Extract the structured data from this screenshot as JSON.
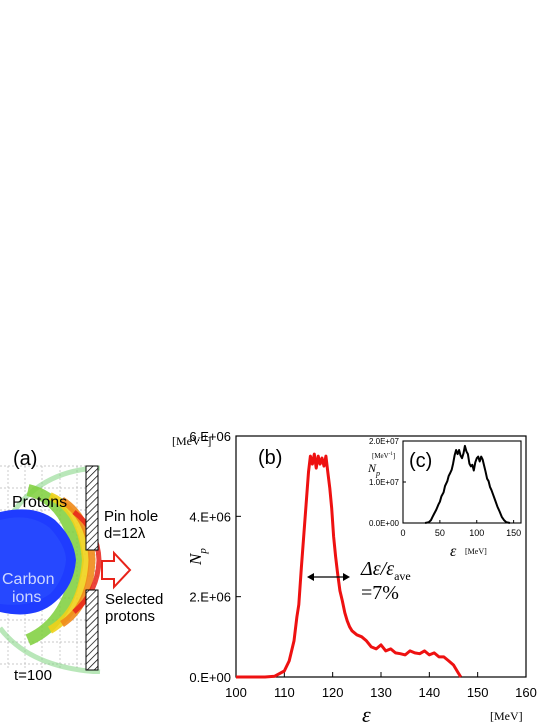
{
  "panel_a": {
    "label": "(a)",
    "protons_label": "Protons",
    "carbon_label_1": "Carbon",
    "carbon_label_2": "ions",
    "pinhole_label_1": "Pin hole",
    "pinhole_label_2": "d=12λ",
    "selected_label_1": "Selected",
    "selected_label_2": "protons",
    "time_label": "t=100",
    "colors": {
      "carbon": "#1f3cff",
      "arrow": "#e8231a"
    }
  },
  "panel_b": {
    "label": "(b)",
    "unit_label": "[MeV",
    "unit_sup": "-1",
    "unit_close": "]",
    "ylabel_main": "N",
    "ylabel_sub": "p",
    "xlabel": "ε",
    "xunit": "[MeV]",
    "annotation_line1": "Δε/ε",
    "annotation_sub": "ave",
    "annotation_line2": "=7%"
  },
  "panel_c": {
    "label": "(c)",
    "unit_label": "[MeV",
    "unit_sup": "-1",
    "unit_close": "]",
    "ylabel_main": "N",
    "ylabel_sub": "p",
    "xlabel": "ε",
    "xunit": "[MeV]"
  },
  "chart_data": [
    {
      "type": "line",
      "panel": "(b)",
      "xlabel": "ε",
      "ylabel": "Np",
      "xlim": [
        100,
        160
      ],
      "ylim": [
        0,
        6000000
      ],
      "x_ticks": [
        100,
        110,
        120,
        130,
        140,
        150,
        160
      ],
      "y_ticks": [
        0,
        2000000,
        4000000,
        6000000
      ],
      "y_tick_labels": [
        "0.E+00",
        "2.E+06",
        "4.E+06",
        "6.E+06"
      ],
      "line_color": "#ee1111",
      "grid": false,
      "series": [
        {
          "x": [
            100,
            106,
            108,
            110,
            111,
            112,
            112.6,
            113,
            113.5,
            114,
            114.5,
            115,
            115.4,
            115.8,
            116.2,
            116.6,
            117,
            117.4,
            117.8,
            118.2,
            118.6,
            119,
            119.4,
            119.8,
            120.2,
            120.6,
            121,
            121.5,
            122,
            122.5,
            123,
            123.5,
            124,
            125,
            126,
            127,
            128,
            129,
            130,
            131,
            132,
            133,
            134,
            135,
            136,
            137,
            138,
            139,
            140,
            141,
            142,
            143,
            144,
            145,
            146,
            146.5
          ],
          "y": [
            0,
            0,
            20000,
            150000,
            400000,
            900000,
            1500000,
            1800000,
            2700000,
            3500000,
            4300000,
            5100000,
            5500000,
            5300000,
            5550000,
            5200000,
            5500000,
            5300000,
            5450000,
            5250000,
            5500000,
            5100000,
            4700000,
            4200000,
            3500000,
            3000000,
            2600000,
            2150000,
            1900000,
            1600000,
            1400000,
            1250000,
            1150000,
            1050000,
            1000000,
            900000,
            750000,
            700000,
            800000,
            650000,
            700000,
            600000,
            580000,
            550000,
            650000,
            600000,
            580000,
            650000,
            550000,
            600000,
            500000,
            500000,
            400000,
            300000,
            100000,
            0
          ]
        }
      ]
    },
    {
      "type": "line",
      "panel": "(c)",
      "xlabel": "ε",
      "ylabel": "Np",
      "xlim": [
        0,
        160
      ],
      "ylim": [
        0,
        20000000
      ],
      "x_ticks": [
        0,
        50,
        100,
        150
      ],
      "y_ticks": [
        0,
        10000000,
        20000000
      ],
      "y_tick_labels": [
        "0.0E+00",
        "1.0E+07",
        "2.0E+07"
      ],
      "line_color": "#000000",
      "grid": false,
      "series": [
        {
          "x": [
            30,
            35,
            38,
            40,
            42,
            45,
            48,
            50,
            52,
            55,
            57,
            60,
            62,
            64,
            66,
            68,
            70,
            72,
            74,
            76,
            78,
            80,
            82,
            84,
            86,
            88,
            90,
            92,
            94,
            96,
            98,
            100,
            102,
            104,
            106,
            108,
            110,
            112,
            114,
            116,
            118,
            120,
            122,
            125,
            128,
            131,
            134,
            137,
            140,
            145
          ],
          "y": [
            0,
            200000,
            700000,
            1500000,
            2200000,
            3200000,
            4500000,
            5200000,
            6500000,
            7500000,
            9000000,
            10200000,
            11500000,
            12200000,
            13000000,
            14500000,
            16500000,
            17800000,
            16800000,
            17800000,
            16500000,
            15800000,
            17000000,
            18800000,
            17500000,
            16800000,
            14500000,
            13800000,
            14200000,
            12800000,
            14800000,
            15800000,
            16200000,
            15000000,
            16200000,
            15500000,
            14000000,
            12500000,
            10800000,
            10200000,
            8800000,
            8000000,
            7000000,
            5500000,
            4000000,
            2800000,
            1500000,
            700000,
            200000,
            0
          ]
        }
      ]
    }
  ]
}
